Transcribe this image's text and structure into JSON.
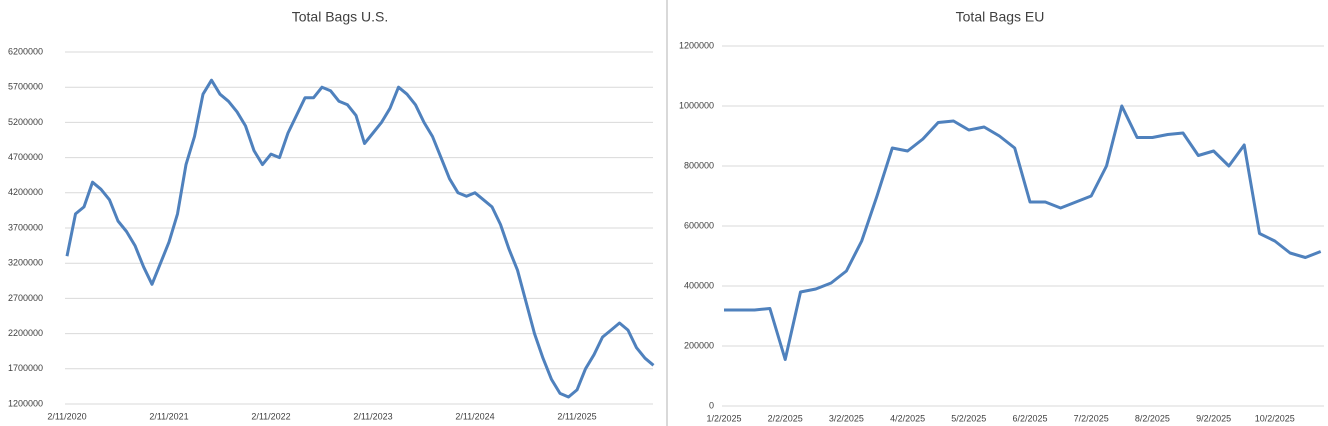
{
  "chart_data": [
    {
      "type": "line",
      "title": "Total Bags U.S.",
      "color": "#4f81bd",
      "grid": true,
      "ylim": [
        1200000,
        6200000
      ],
      "yticks": [
        1200000,
        1700000,
        2200000,
        2700000,
        3200000,
        3700000,
        4200000,
        4700000,
        5200000,
        5700000,
        6200000
      ],
      "categories": [
        "2/11/2020",
        null,
        null,
        null,
        null,
        null,
        null,
        null,
        null,
        null,
        null,
        null,
        "2/11/2021",
        null,
        null,
        null,
        null,
        null,
        null,
        null,
        null,
        null,
        null,
        null,
        "2/11/2022",
        null,
        null,
        null,
        null,
        null,
        null,
        null,
        null,
        null,
        null,
        null,
        "2/11/2023",
        null,
        null,
        null,
        null,
        null,
        null,
        null,
        null,
        null,
        null,
        null,
        "2/11/2024",
        null,
        null,
        null,
        null,
        null,
        null,
        null,
        null,
        null,
        null,
        null,
        "2/11/2025",
        null,
        null,
        null,
        null,
        null,
        null,
        null,
        null,
        null
      ],
      "series": [
        {
          "name": "Total Bags U.S.",
          "color": "#4f81bd",
          "values": [
            3300000,
            3900000,
            4000000,
            4350000,
            4250000,
            4100000,
            3800000,
            3650000,
            3450000,
            3150000,
            2900000,
            3200000,
            3500000,
            3900000,
            4600000,
            5000000,
            5600000,
            5800000,
            5600000,
            5500000,
            5350000,
            5150000,
            4800000,
            4600000,
            4750000,
            4700000,
            5050000,
            5300000,
            5550000,
            5550000,
            5700000,
            5650000,
            5500000,
            5450000,
            5300000,
            4900000,
            5050000,
            5200000,
            5400000,
            5700000,
            5600000,
            5450000,
            5200000,
            5000000,
            4700000,
            4400000,
            4200000,
            4150000,
            4200000,
            4100000,
            4000000,
            3750000,
            3400000,
            3100000,
            2650000,
            2200000,
            1850000,
            1550000,
            1350000,
            1300000,
            1400000,
            1700000,
            1900000,
            2150000,
            2250000,
            2350000,
            2250000,
            2000000,
            1850000,
            1750000
          ]
        }
      ]
    },
    {
      "type": "line",
      "title": "Total Bags EU",
      "color": "#4f81bd",
      "grid": true,
      "ylim": [
        0,
        1200000
      ],
      "yticks": [
        0,
        200000,
        400000,
        600000,
        800000,
        1000000,
        1200000
      ],
      "categories": [
        "1/2/2025",
        null,
        null,
        null,
        "2/2/2025",
        null,
        null,
        null,
        "3/2/2025",
        null,
        null,
        null,
        "4/2/2025",
        null,
        null,
        null,
        "5/2/2025",
        null,
        null,
        null,
        "6/2/2025",
        null,
        null,
        null,
        "7/2/2025",
        null,
        null,
        null,
        "8/2/2025",
        null,
        null,
        null,
        "9/2/2025",
        null,
        null,
        null,
        "10/2/2025",
        null,
        null,
        null
      ],
      "series": [
        {
          "name": "Total Bags EU",
          "color": "#4f81bd",
          "values": [
            320000,
            320000,
            320000,
            325000,
            155000,
            380000,
            390000,
            410000,
            450000,
            550000,
            700000,
            860000,
            850000,
            890000,
            945000,
            950000,
            920000,
            930000,
            900000,
            860000,
            680000,
            680000,
            660000,
            680000,
            700000,
            800000,
            1000000,
            895000,
            895000,
            905000,
            910000,
            835000,
            850000,
            800000,
            870000,
            575000,
            550000,
            510000,
            495000,
            515000
          ]
        }
      ]
    }
  ]
}
